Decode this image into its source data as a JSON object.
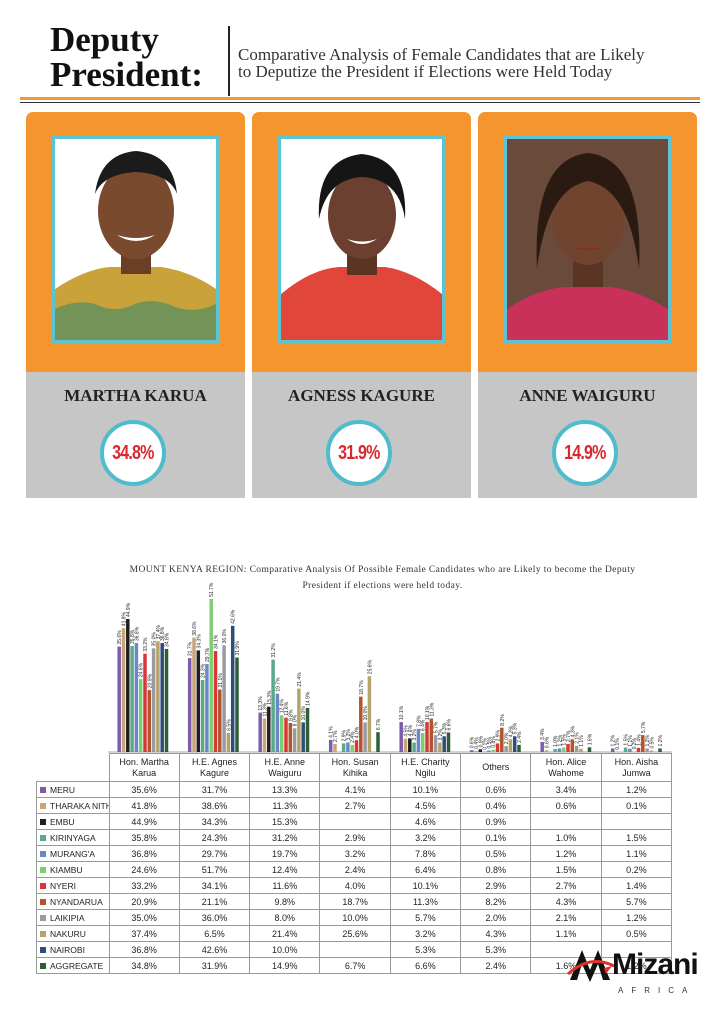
{
  "header": {
    "title_line1": "Deputy",
    "title_line2": "President:",
    "subtitle_line1": "Comparative Analysis of Female Candidates that are Likely",
    "subtitle_line2": "to Deputize the President if Elections were Held Today"
  },
  "candidates": [
    {
      "name": "MARTHA KARUA",
      "percent": "34.8%"
    },
    {
      "name": "AGNESS KAGURE",
      "percent": "31.9%"
    },
    {
      "name": "ANNE WAIGURU",
      "percent": "14.9%"
    }
  ],
  "chart_data": {
    "type": "bar",
    "title_line1": "MOUNT KENYA REGION: Comparative Analysis Of Possible Female Candidates who are Likely to become the Deputy",
    "title_line2": "President if elections were held today.",
    "categories": [
      "Hon. Martha Karua",
      "H.E. Agnes Kagure",
      "H.E. Anne Waiguru",
      "Hon. Susan Kihika",
      "H.E. Charity Ngilu",
      "Others",
      "Hon. Alice Wahome",
      "Hon. Aisha Jumwa"
    ],
    "series": [
      {
        "name": "MERU",
        "color": "#7a5ca8",
        "values": [
          35.6,
          31.7,
          13.3,
          4.1,
          10.1,
          0.6,
          3.4,
          1.2
        ]
      },
      {
        "name": "THARAKA NITHI",
        "color": "#c9a47a",
        "values": [
          41.8,
          38.6,
          11.3,
          2.7,
          4.5,
          0.4,
          0.6,
          0.1
        ]
      },
      {
        "name": "EMBU",
        "color": "#1f1f1f",
        "values": [
          44.9,
          34.3,
          15.3,
          null,
          4.6,
          0.9,
          null,
          null
        ]
      },
      {
        "name": "KIRINYAGA",
        "color": "#5aa98a",
        "values": [
          35.8,
          24.3,
          31.2,
          2.9,
          3.2,
          0.1,
          1.0,
          1.5
        ]
      },
      {
        "name": "MURANG'A",
        "color": "#6a88c9",
        "values": [
          36.8,
          29.7,
          19.7,
          3.2,
          7.8,
          0.5,
          1.2,
          1.1
        ]
      },
      {
        "name": "KIAMBU",
        "color": "#7ccf6e",
        "values": [
          24.6,
          51.7,
          12.4,
          2.4,
          6.4,
          0.8,
          1.5,
          0.2
        ]
      },
      {
        "name": "NYERI",
        "color": "#d9363c",
        "values": [
          33.2,
          34.1,
          11.6,
          4.0,
          10.1,
          2.9,
          2.7,
          1.4
        ]
      },
      {
        "name": "NYANDARUA",
        "color": "#b0562a",
        "values": [
          20.9,
          21.1,
          9.8,
          18.7,
          11.3,
          8.2,
          4.3,
          5.7
        ]
      },
      {
        "name": "LAIKIPIA",
        "color": "#9a9aa4",
        "values": [
          35.0,
          36.0,
          8.0,
          10.0,
          5.7,
          2.0,
          2.1,
          1.2
        ]
      },
      {
        "name": "NAKURU",
        "color": "#b5a46a",
        "values": [
          37.4,
          6.5,
          21.4,
          25.6,
          3.2,
          4.3,
          1.1,
          0.5
        ]
      },
      {
        "name": "NAIROBI",
        "color": "#2d4d7a",
        "values": [
          36.8,
          42.6,
          10.0,
          null,
          5.3,
          5.3,
          null,
          null
        ]
      },
      {
        "name": "AGGREGATE",
        "color": "#2e5e36",
        "values": [
          34.8,
          31.9,
          14.9,
          6.7,
          6.6,
          2.4,
          1.6,
          1.2
        ]
      }
    ],
    "ylim": [
      0,
      52
    ],
    "grid": false,
    "data_labels": true,
    "table_below": true
  },
  "logo": {
    "name": "Mizani",
    "sub": "AFRICA"
  },
  "colors": {
    "accent": "#f4962d",
    "ring": "#4fbccc",
    "percent": "#d9292f",
    "card_grey": "#c6c6c6"
  }
}
